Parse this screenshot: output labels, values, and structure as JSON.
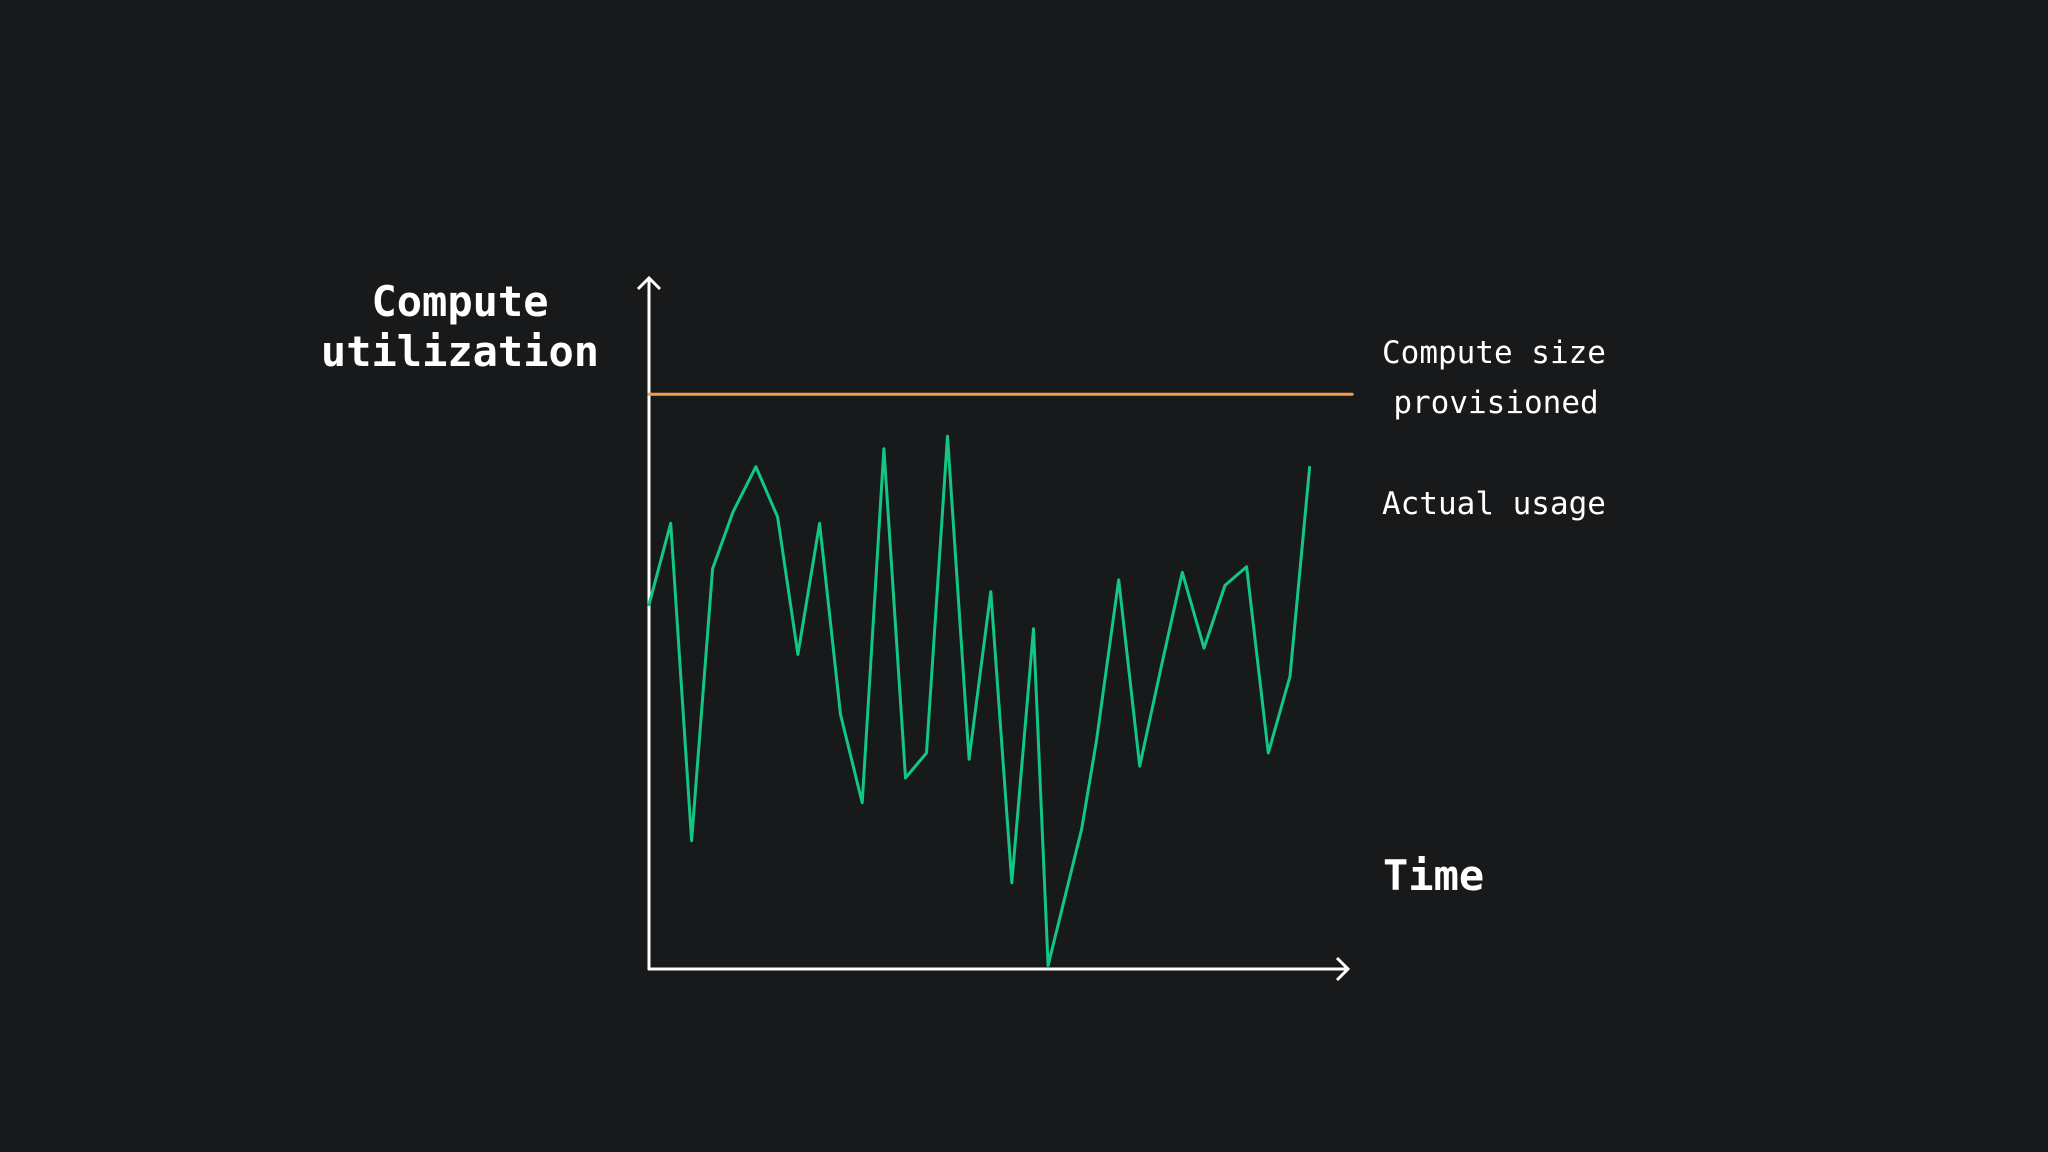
{
  "chart_data": {
    "type": "line",
    "title": "",
    "ylabel": [
      "Compute",
      "utilization"
    ],
    "xlabel": "Time",
    "xlim": [
      0,
      100
    ],
    "ylim": [
      0,
      100
    ],
    "grid": false,
    "legend": "right",
    "series": [
      {
        "name": "Compute size provisioned",
        "label_lines": [
          "Compute size",
          "provisioned"
        ],
        "color": "#f0a04b",
        "x": [
          0,
          100.6
        ],
        "y": [
          83.3,
          83.3
        ]
      },
      {
        "name": "Actual usage",
        "label_lines": [
          "Actual usage"
        ],
        "color": "#12c784",
        "x": [
          0,
          3.1,
          6.1,
          9.1,
          12.0,
          15.3,
          18.4,
          21.3,
          24.4,
          27.4,
          30.5,
          33.6,
          36.7,
          39.7,
          42.7,
          45.8,
          48.9,
          51.9,
          55.0,
          57.1,
          61.9,
          64.0,
          67.2,
          70.2,
          73.3,
          76.3,
          79.4,
          82.4,
          85.5,
          88.6,
          91.7,
          94.5
        ],
        "y": [
          52.8,
          64.6,
          18.6,
          58.0,
          66.2,
          72.8,
          65.5,
          45.6,
          64.6,
          36.9,
          24.1,
          75.4,
          27.7,
          31.3,
          77.2,
          30.4,
          54.7,
          12.5,
          49.3,
          0.5,
          20.3,
          33.0,
          56.4,
          29.4,
          43.9,
          57.5,
          46.5,
          55.6,
          58.3,
          31.3,
          42.4,
          72.7
        ]
      }
    ]
  },
  "colors": {
    "background": "#18191b",
    "axis": "#ffffff"
  }
}
